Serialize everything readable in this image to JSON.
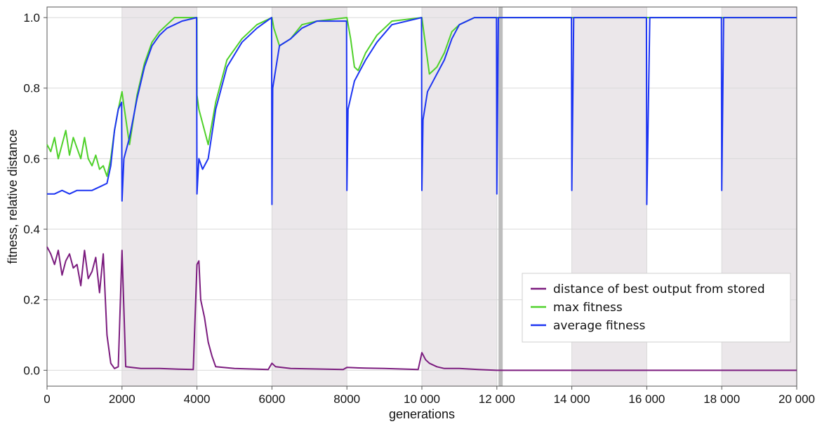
{
  "chart_data": {
    "type": "line",
    "title": "",
    "xlabel": "generations",
    "ylabel": "fitness, relative distance",
    "xlim": [
      0,
      20000
    ],
    "ylim": [
      0,
      1
    ],
    "x_ticks": [
      0,
      2000,
      4000,
      6000,
      8000,
      10000,
      12000,
      14000,
      16000,
      18000,
      20000
    ],
    "x_tick_labels": [
      "0",
      "2000",
      "4000",
      "6000",
      "8000",
      "10 000",
      "12 000",
      "14 000",
      "16 000",
      "18 000",
      "20 000"
    ],
    "y_ticks": [
      0,
      0.2,
      0.4,
      0.6,
      0.8,
      1.0
    ],
    "y_tick_labels": [
      "0.0",
      "0.2",
      "0.4",
      "0.6",
      "0.8",
      "1.0"
    ],
    "grid": true,
    "legend_position": "lower-right",
    "shaded_intervals": [
      [
        2000,
        4000
      ],
      [
        6000,
        8000
      ],
      [
        10000,
        12000
      ],
      [
        14000,
        16000
      ],
      [
        18000,
        20000
      ]
    ],
    "marker_line_x": 12100,
    "series": [
      {
        "name": "distance of best output from stored",
        "color": "#7b1b7e",
        "x": [
          0,
          100,
          200,
          300,
          400,
          500,
          600,
          700,
          800,
          900,
          1000,
          1100,
          1200,
          1300,
          1400,
          1500,
          1600,
          1700,
          1800,
          1900,
          2000,
          2100,
          2500,
          3000,
          3500,
          3900,
          4000,
          4050,
          4100,
          4200,
          4300,
          4400,
          4500,
          5000,
          5900,
          6000,
          6100,
          6500,
          7900,
          8000,
          8500,
          9000,
          9900,
          10000,
          10100,
          10200,
          10400,
          10600,
          11000,
          11500,
          12000,
          14000,
          16000,
          18000,
          20000
        ],
        "values": [
          0.35,
          0.33,
          0.3,
          0.34,
          0.27,
          0.31,
          0.33,
          0.29,
          0.3,
          0.24,
          0.34,
          0.26,
          0.28,
          0.32,
          0.22,
          0.33,
          0.1,
          0.02,
          0.005,
          0.01,
          0.34,
          0.01,
          0.005,
          0.005,
          0.003,
          0.002,
          0.3,
          0.31,
          0.2,
          0.15,
          0.08,
          0.04,
          0.01,
          0.005,
          0.002,
          0.02,
          0.01,
          0.005,
          0.002,
          0.008,
          0.006,
          0.005,
          0.002,
          0.05,
          0.03,
          0.02,
          0.01,
          0.005,
          0.005,
          0.002,
          0.0,
          0.0,
          0.0,
          0.0,
          0.0
        ]
      },
      {
        "name": "max fitness",
        "color": "#4fd12a",
        "x": [
          0,
          100,
          200,
          300,
          400,
          500,
          600,
          700,
          800,
          900,
          1000,
          1100,
          1200,
          1300,
          1400,
          1500,
          1600,
          1700,
          1800,
          1900,
          2000,
          2050,
          2200,
          2400,
          2600,
          2800,
          3000,
          3200,
          3400,
          3600,
          3999,
          4000,
          4050,
          4200,
          4300,
          4500,
          4800,
          5200,
          5600,
          5999,
          6000,
          6050,
          6200,
          6500,
          6800,
          7200,
          7999,
          8000,
          8100,
          8200,
          8300,
          8500,
          8800,
          9200,
          9999,
          10000,
          10100,
          10200,
          10400,
          10600,
          10800,
          11000,
          11400,
          11999,
          12000,
          20000
        ],
        "values": [
          0.64,
          0.62,
          0.66,
          0.6,
          0.64,
          0.68,
          0.61,
          0.66,
          0.63,
          0.6,
          0.66,
          0.6,
          0.58,
          0.61,
          0.57,
          0.58,
          0.55,
          0.6,
          0.68,
          0.74,
          0.79,
          0.75,
          0.64,
          0.78,
          0.87,
          0.93,
          0.96,
          0.98,
          1.0,
          1.0,
          1.0,
          0.78,
          0.74,
          0.68,
          0.64,
          0.76,
          0.88,
          0.94,
          0.98,
          1.0,
          1.0,
          0.97,
          0.92,
          0.94,
          0.98,
          0.99,
          1.0,
          1.0,
          0.94,
          0.86,
          0.85,
          0.9,
          0.95,
          0.99,
          1.0,
          1.0,
          0.92,
          0.84,
          0.86,
          0.9,
          0.96,
          0.98,
          1.0,
          1.0,
          1.0,
          1.0
        ]
      },
      {
        "name": "average fitness",
        "color": "#1c34f2",
        "x": [
          0,
          200,
          400,
          600,
          800,
          1000,
          1200,
          1400,
          1600,
          1700,
          1800,
          1900,
          1990,
          2000,
          2050,
          2200,
          2400,
          2600,
          2800,
          3000,
          3200,
          3400,
          3600,
          3990,
          4000,
          4050,
          4150,
          4300,
          4500,
          4800,
          5200,
          5600,
          5990,
          6000,
          6020,
          6200,
          6500,
          6800,
          7200,
          7990,
          8000,
          8030,
          8200,
          8300,
          8500,
          8800,
          9200,
          9990,
          10000,
          10030,
          10150,
          10300,
          10600,
          10800,
          11000,
          11400,
          11990,
          12000,
          12040,
          12200,
          13990,
          14000,
          14050,
          14300,
          15990,
          16000,
          16080,
          16400,
          17990,
          18000,
          18050,
          18300,
          20000
        ],
        "values": [
          0.5,
          0.5,
          0.51,
          0.5,
          0.51,
          0.51,
          0.51,
          0.52,
          0.53,
          0.58,
          0.68,
          0.74,
          0.76,
          0.48,
          0.6,
          0.66,
          0.77,
          0.86,
          0.92,
          0.95,
          0.97,
          0.98,
          0.99,
          1.0,
          0.5,
          0.6,
          0.57,
          0.6,
          0.74,
          0.86,
          0.93,
          0.97,
          1.0,
          0.47,
          0.8,
          0.92,
          0.94,
          0.97,
          0.99,
          0.99,
          0.51,
          0.74,
          0.82,
          0.84,
          0.88,
          0.93,
          0.98,
          1.0,
          0.51,
          0.71,
          0.79,
          0.82,
          0.88,
          0.94,
          0.98,
          1.0,
          1.0,
          0.5,
          1.0,
          1.0,
          1.0,
          0.51,
          1.0,
          1.0,
          1.0,
          0.47,
          1.0,
          1.0,
          1.0,
          0.51,
          1.0,
          1.0,
          1.0
        ]
      }
    ]
  }
}
